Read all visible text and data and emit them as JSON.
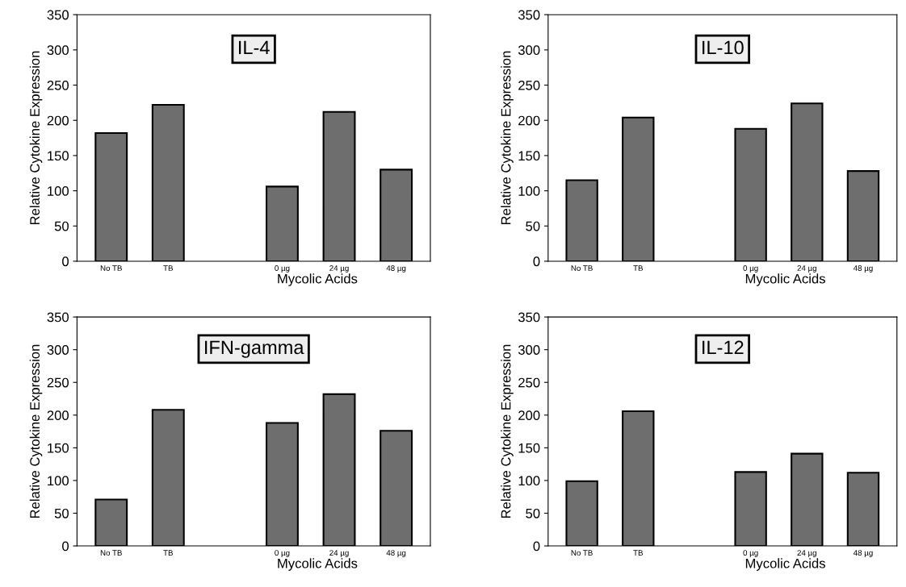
{
  "chart_data": [
    {
      "type": "bar",
      "title": "IL-4",
      "xlabel": "Mycolic Acids",
      "ylabel": "Relative Cytokine Expression",
      "categories": [
        "No TB",
        "TB",
        null,
        "0 µg",
        "24 µg",
        "48 µg"
      ],
      "values": [
        182,
        222,
        null,
        106,
        212,
        130
      ],
      "color": "#6e6e6e",
      "ylim": [
        0,
        350
      ],
      "yticks": [
        0,
        50,
        100,
        150,
        200,
        250,
        300,
        350
      ],
      "grid": false
    },
    {
      "type": "bar",
      "title": "IL-10",
      "xlabel": "Mycolic Acids",
      "ylabel": "Relative Cytokine Expression",
      "categories": [
        "No TB",
        "TB",
        null,
        "0 µg",
        "24 µg",
        "48 µg"
      ],
      "values": [
        115,
        204,
        null,
        188,
        224,
        128
      ],
      "color": "#6e6e6e",
      "ylim": [
        0,
        350
      ],
      "yticks": [
        0,
        50,
        100,
        150,
        200,
        250,
        300,
        350
      ],
      "grid": false
    },
    {
      "type": "bar",
      "title": "IFN-gamma",
      "xlabel": "Mycolic Acids",
      "ylabel": "Relative Cytokine Expression",
      "categories": [
        "No TB",
        "TB",
        null,
        "0 µg",
        "24 µg",
        "48 µg"
      ],
      "values": [
        71,
        208,
        null,
        188,
        232,
        176
      ],
      "color": "#6e6e6e",
      "ylim": [
        0,
        350
      ],
      "yticks": [
        0,
        50,
        100,
        150,
        200,
        250,
        300,
        350
      ],
      "grid": false
    },
    {
      "type": "bar",
      "title": "IL-12",
      "xlabel": "Mycolic Acids",
      "ylabel": "Relative Cytokine Expression",
      "categories": [
        "No TB",
        "TB",
        null,
        "0 µg",
        "24 µg",
        "48 µg"
      ],
      "values": [
        99,
        206,
        null,
        113,
        141,
        112
      ],
      "color": "#6e6e6e",
      "ylim": [
        0,
        350
      ],
      "yticks": [
        0,
        50,
        100,
        150,
        200,
        250,
        300,
        350
      ],
      "grid": false
    }
  ]
}
